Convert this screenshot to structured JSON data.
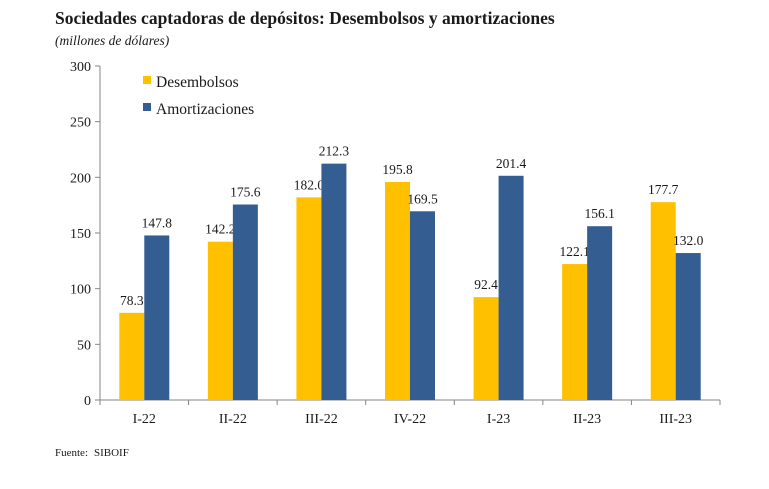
{
  "title": "Sociedades captadoras de depósitos: Desembolsos y amortizaciones",
  "subtitle": "(millones de dólares)",
  "source": {
    "label": "Fuente:",
    "value": "SIBOIF"
  },
  "colors": {
    "desembolsos": "#FFC000",
    "amortizaciones": "#345E92"
  },
  "chart_data": {
    "type": "bar",
    "title": "Sociedades captadoras de depósitos: Desembolsos y amortizaciones",
    "subtitle": "(millones de dólares)",
    "categories": [
      "I-22",
      "II-22",
      "III-22",
      "IV-22",
      "I-23",
      "II-23",
      "III-23"
    ],
    "series": [
      {
        "name": "Desembolsos",
        "values": [
          78.3,
          142.2,
          182.0,
          195.8,
          92.4,
          122.1,
          177.7
        ]
      },
      {
        "name": "Amortizaciones",
        "values": [
          147.8,
          175.6,
          212.3,
          169.5,
          201.4,
          156.1,
          132.0
        ]
      }
    ],
    "value_labels": [
      [
        "78.3",
        "142.2",
        "182.0",
        "195.8",
        "92.4",
        "122.1",
        "177.7"
      ],
      [
        "147.8",
        "175.6",
        "212.3",
        "169.5",
        "201.4",
        "156.1",
        "132.0"
      ]
    ],
    "ylim": [
      0,
      300
    ],
    "yticks": [
      "0",
      "50",
      "100",
      "150",
      "200",
      "250",
      "300"
    ],
    "grid": false,
    "legend": "top-left"
  }
}
